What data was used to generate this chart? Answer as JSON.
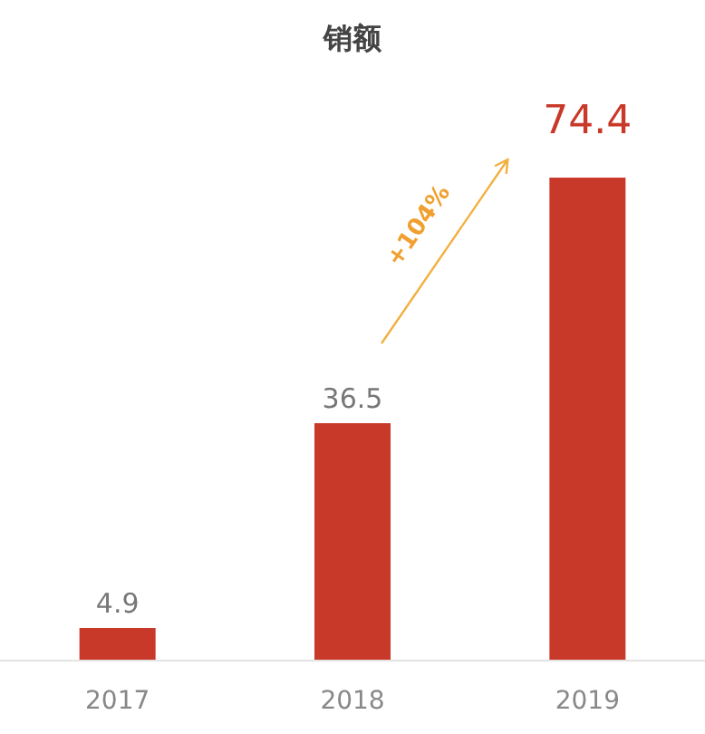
{
  "chart_data": {
    "type": "bar",
    "title": "销额",
    "categories": [
      "2017",
      "2018",
      "2019"
    ],
    "values": [
      4.9,
      36.5,
      74.4
    ],
    "color": "#c9392a",
    "data_labels": true,
    "annotations": [
      "+104%"
    ]
  }
}
